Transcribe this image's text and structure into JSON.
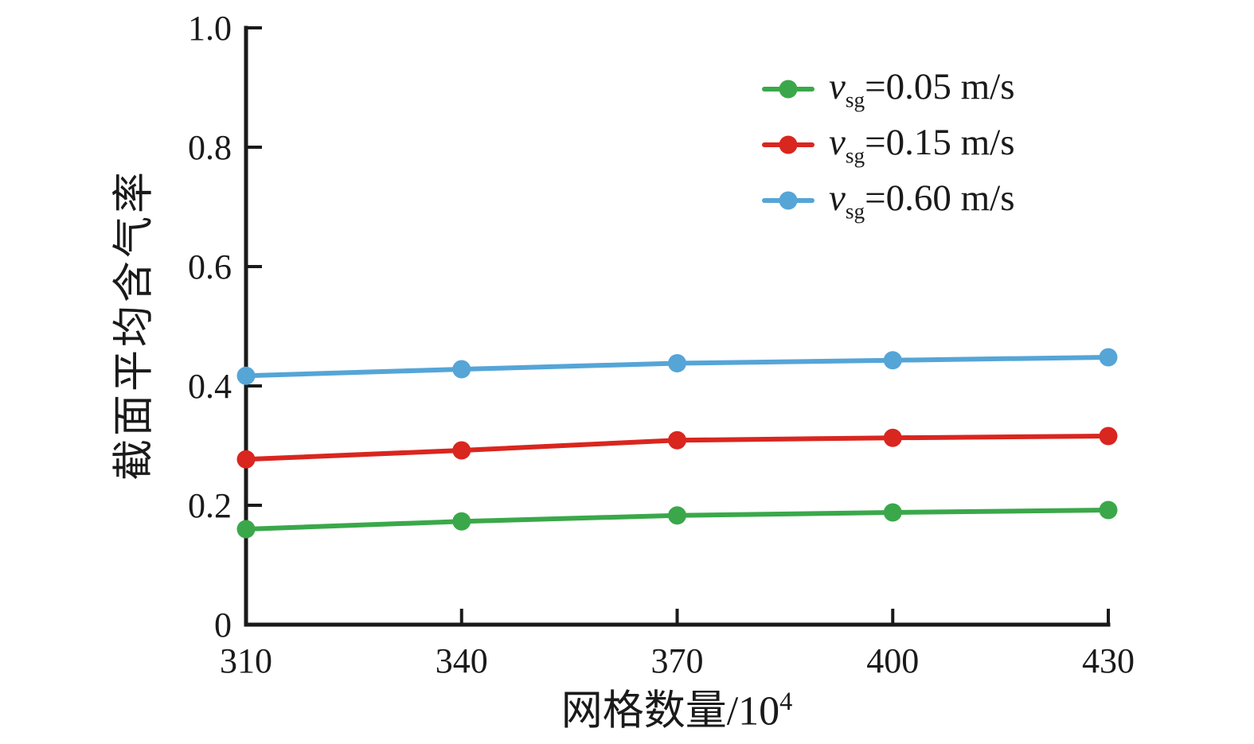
{
  "chart_data": {
    "type": "line",
    "title": "",
    "xlabel": {
      "text": "网格数量/10",
      "sup": "4"
    },
    "ylabel": "截面平均含气率",
    "x": [
      310,
      340,
      370,
      400,
      430
    ],
    "xticks": [
      "310",
      "340",
      "370",
      "400",
      "430"
    ],
    "yticks": [
      "0",
      "0.2",
      "0.4",
      "0.6",
      "0.8",
      "1.0"
    ],
    "xlim": [
      310,
      430
    ],
    "ylim": [
      0,
      1.0
    ],
    "grid": false,
    "legend_position": "upper right",
    "axis_color": "#1a1a1a",
    "series": [
      {
        "name": "vsg=0.05 m/s",
        "legend": {
          "var": "v",
          "sub": "sg",
          "rest": "=0.05 m/s"
        },
        "color": "#3aa84a",
        "values": [
          0.16,
          0.173,
          0.183,
          0.188,
          0.192
        ]
      },
      {
        "name": "vsg=0.15 m/s",
        "legend": {
          "var": "v",
          "sub": "sg",
          "rest": "=0.15 m/s"
        },
        "color": "#d9261f",
        "values": [
          0.277,
          0.292,
          0.309,
          0.313,
          0.316
        ]
      },
      {
        "name": "vsg=0.60 m/s",
        "legend": {
          "var": "v",
          "sub": "sg",
          "rest": "=0.60 m/s"
        },
        "color": "#55a5d7",
        "values": [
          0.417,
          0.428,
          0.438,
          0.443,
          0.448
        ]
      }
    ]
  }
}
